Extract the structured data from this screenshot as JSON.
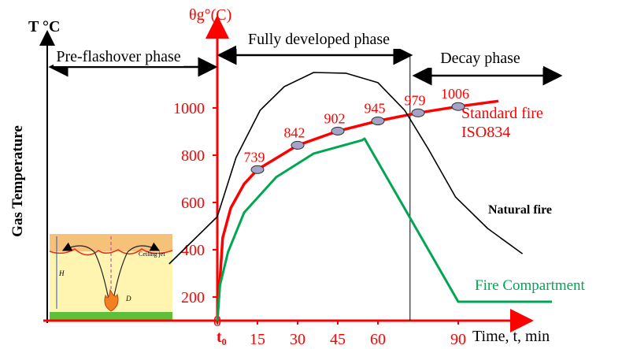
{
  "chart_data": {
    "type": "line",
    "left_axis_title": "T °C",
    "y_axis_title": "θg°(C)",
    "side_label": "Gas Temperature",
    "x_axis_title": "Time, t, min",
    "origin_label": "t₀",
    "phases": [
      "Pre-flashover phase",
      "Fully developed phase",
      "Decay phase"
    ],
    "decay_start": 72,
    "xlim": [
      -20,
      125
    ],
    "ylim": [
      100,
      1200
    ],
    "xticks": [
      0,
      15,
      30,
      45,
      60,
      90
    ],
    "yticks": [
      200,
      400,
      600,
      800,
      1000
    ],
    "series": [
      {
        "name": "Standard fire ISO834",
        "color": "#ff0000",
        "x": [
          0,
          2,
          5,
          10,
          15,
          30,
          45,
          60,
          75,
          90,
          105
        ],
        "values": [
          100,
          450,
          576,
          678,
          739,
          842,
          902,
          945,
          979,
          1006,
          1029
        ],
        "value_labels": [
          null,
          null,
          null,
          null,
          "739",
          "842",
          "902",
          "945",
          "979",
          "1006",
          null
        ]
      },
      {
        "name": "Natural fire",
        "color": "#000000",
        "x": [
          -18,
          0,
          7,
          16,
          25,
          36,
          48,
          60,
          70,
          79,
          89,
          101,
          114
        ],
        "values": [
          340,
          540,
          790,
          990,
          1090,
          1150,
          1147,
          1107,
          990,
          823,
          623,
          490,
          383
        ]
      },
      {
        "name": "Fire Compartment",
        "color": "#00a651",
        "x": [
          0,
          1,
          4,
          10,
          22,
          36,
          54,
          55,
          90,
          125
        ],
        "values": [
          100,
          250,
          390,
          557,
          707,
          807,
          863,
          870,
          180,
          180
        ]
      }
    ],
    "inset": {
      "jet_label": "Ceiling jet",
      "height_label": "H",
      "diameter_label": "D"
    }
  }
}
